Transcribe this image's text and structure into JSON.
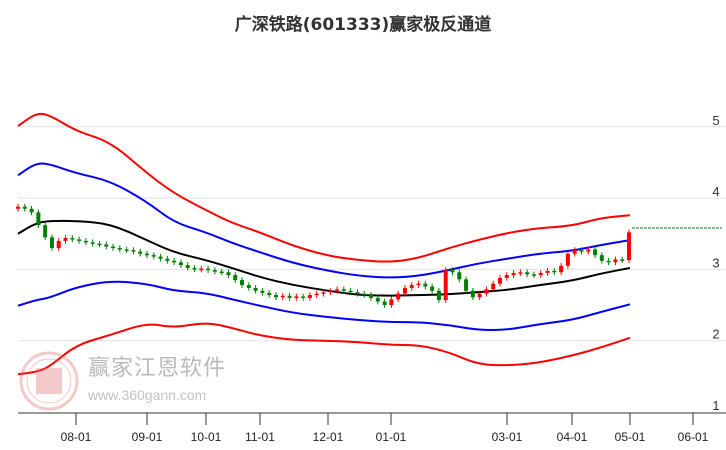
{
  "title": "广深铁路(601333)赢家极反通道",
  "watermark": {
    "brand": "赢家江恩软件",
    "url": "www.360gann.com",
    "seal": "江赢恩家"
  },
  "chart_data": {
    "type": "candlestick-with-bands",
    "title": "广深铁路(601333)赢家极反通道",
    "y_ticks": [
      "5",
      "4",
      "3",
      "2",
      "1"
    ],
    "y_tick_values": [
      5,
      4,
      3,
      2,
      1
    ],
    "ylim": [
      1,
      5
    ],
    "grid": true,
    "x_ticks": [
      "08-01",
      "09-01",
      "10-01",
      "11-01",
      "12-01",
      "01-01",
      "03-01",
      "04-01",
      "05-01",
      "06-01"
    ],
    "colors": {
      "outer_band": "#ff0000",
      "inner_band": "#0000ff",
      "middle": "#000000",
      "up": "#ff0000",
      "down": "#008000",
      "level": "#008000"
    },
    "band_dates": [
      "07-06",
      "07-14",
      "07-20",
      "08-01",
      "08-16",
      "09-01",
      "09-15",
      "10-01",
      "10-16",
      "11-01",
      "11-16",
      "12-01",
      "12-16",
      "01-01",
      "01-16",
      "02-01",
      "02-16",
      "03-01",
      "03-16",
      "04-01",
      "04-16",
      "05-01"
    ],
    "series": [
      {
        "key": "upper_outer",
        "color": "#ff0000",
        "values": [
          5.01,
          5.19,
          5.17,
          4.94,
          4.79,
          4.35,
          4.07,
          3.83,
          3.65,
          3.52,
          3.33,
          3.19,
          3.13,
          3.1,
          3.16,
          3.3,
          3.41,
          3.51,
          3.58,
          3.61,
          3.72,
          3.76
        ]
      },
      {
        "key": "upper_inner",
        "color": "#0000ff",
        "values": [
          4.32,
          4.49,
          4.48,
          4.35,
          4.24,
          3.95,
          3.66,
          3.52,
          3.37,
          3.24,
          3.09,
          2.98,
          2.91,
          2.88,
          2.91,
          2.99,
          3.08,
          3.15,
          3.22,
          3.26,
          3.34,
          3.41
        ]
      },
      {
        "key": "middle",
        "color": "#000000",
        "values": [
          3.5,
          3.65,
          3.68,
          3.68,
          3.64,
          3.41,
          3.24,
          3.13,
          3.02,
          2.89,
          2.78,
          2.7,
          2.64,
          2.63,
          2.64,
          2.65,
          2.68,
          2.71,
          2.78,
          2.84,
          2.94,
          3.02
        ]
      },
      {
        "key": "lower_inner",
        "color": "#0000ff",
        "values": [
          2.49,
          2.57,
          2.6,
          2.75,
          2.84,
          2.8,
          2.7,
          2.67,
          2.58,
          2.49,
          2.39,
          2.33,
          2.29,
          2.26,
          2.26,
          2.22,
          2.15,
          2.15,
          2.23,
          2.29,
          2.4,
          2.51
        ]
      },
      {
        "key": "lower_outer",
        "color": "#ff0000",
        "values": [
          1.53,
          1.56,
          1.63,
          1.94,
          2.08,
          2.25,
          2.18,
          2.26,
          2.18,
          2.07,
          2.01,
          2.0,
          1.98,
          1.94,
          1.94,
          1.84,
          1.67,
          1.65,
          1.69,
          1.79,
          1.9,
          2.04
        ]
      }
    ],
    "candles": {
      "first_date": "07-06",
      "last_date": "05-01",
      "first_open": 3.85,
      "closes": [
        3.88,
        3.85,
        3.8,
        3.62,
        3.45,
        3.3,
        3.4,
        3.44,
        3.42,
        3.4,
        3.38,
        3.36,
        3.35,
        3.32,
        3.3,
        3.28,
        3.27,
        3.25,
        3.22,
        3.2,
        3.18,
        3.15,
        3.12,
        3.1,
        3.06,
        3.02,
        3.0,
        3.01,
        2.99,
        2.97,
        2.96,
        2.92,
        2.85,
        2.78,
        2.74,
        2.7,
        2.67,
        2.64,
        2.61,
        2.63,
        2.6,
        2.62,
        2.6,
        2.64,
        2.66,
        2.68,
        2.7,
        2.72,
        2.7,
        2.68,
        2.66,
        2.64,
        2.6,
        2.55,
        2.5,
        2.58,
        2.66,
        2.74,
        2.78,
        2.8,
        2.76,
        2.7,
        2.57,
        2.99,
        2.96,
        2.86,
        2.7,
        2.61,
        2.66,
        2.72,
        2.8,
        2.88,
        2.92,
        2.95,
        2.96,
        2.93,
        2.92,
        2.95,
        2.98,
        2.96,
        3.05,
        3.22,
        3.27,
        3.25,
        3.28,
        3.2,
        3.12,
        3.1,
        3.14,
        3.13,
        3.52
      ]
    },
    "level_line": {
      "value": 3.58,
      "color": "#008000",
      "style": "dashed"
    }
  }
}
